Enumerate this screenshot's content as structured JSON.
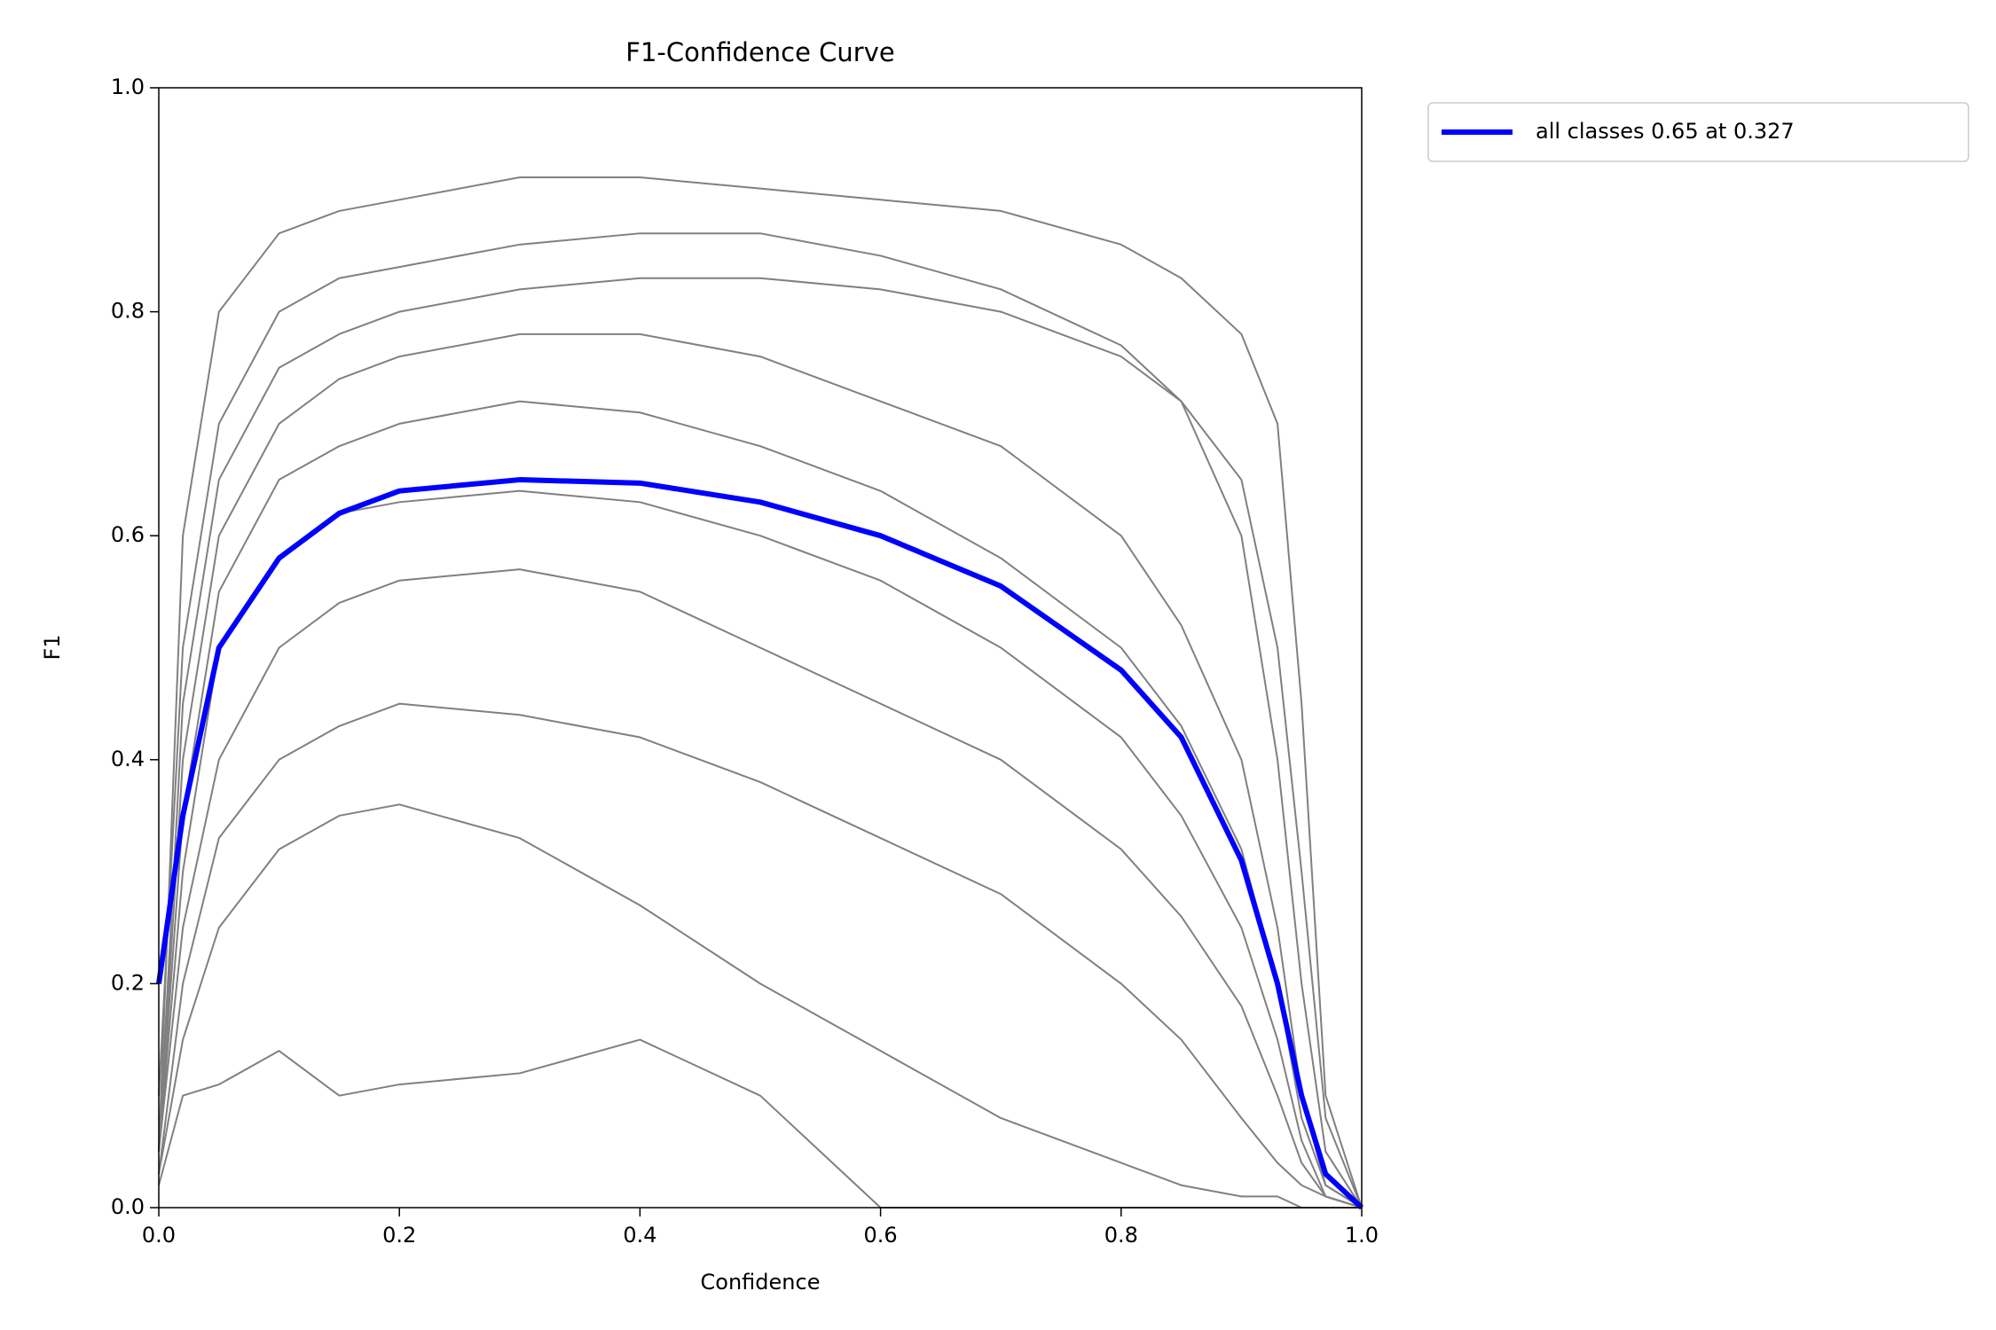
{
  "chart_data": {
    "type": "line",
    "title": "F1-Confidence Curve",
    "x_label": "Confidence",
    "y_label": "F1",
    "xlim": [
      0,
      1
    ],
    "ylim": [
      0,
      1
    ],
    "xticks": [
      {
        "value": 0,
        "label": "0.0"
      },
      0.2,
      0.4,
      0.6,
      0.8,
      {
        "value": 1,
        "label": "1.0"
      }
    ],
    "yticks": [
      {
        "value": 0,
        "label": "0.0"
      },
      0.2,
      0.4,
      0.6,
      0.8,
      {
        "value": 1,
        "label": "1.0"
      }
    ],
    "legend": "outside-upper-right",
    "x": [
      0,
      0.02,
      0.05,
      0.1,
      0.15,
      0.2,
      0.3,
      0.4,
      0.5,
      0.6,
      0.7,
      0.8,
      0.85,
      0.9,
      0.93,
      0.95,
      0.97,
      1.0
    ],
    "series": [
      {
        "color": "#808080",
        "values": [
          0.05,
          0.6,
          0.8,
          0.87,
          0.89,
          0.9,
          0.92,
          0.92,
          0.91,
          0.9,
          0.89,
          0.86,
          0.83,
          0.78,
          0.7,
          0.45,
          0.1,
          0
        ]
      },
      {
        "color": "#808080",
        "values": [
          0.1,
          0.5,
          0.7,
          0.8,
          0.83,
          0.84,
          0.86,
          0.87,
          0.87,
          0.85,
          0.82,
          0.77,
          0.72,
          0.6,
          0.4,
          0.2,
          0.05,
          0
        ]
      },
      {
        "color": "#808080",
        "values": [
          0.05,
          0.45,
          0.65,
          0.75,
          0.78,
          0.8,
          0.82,
          0.83,
          0.83,
          0.82,
          0.8,
          0.76,
          0.72,
          0.65,
          0.5,
          0.3,
          0.08,
          0
        ]
      },
      {
        "color": "#808080",
        "values": [
          0.05,
          0.4,
          0.6,
          0.7,
          0.74,
          0.76,
          0.78,
          0.78,
          0.76,
          0.72,
          0.68,
          0.6,
          0.52,
          0.4,
          0.25,
          0.1,
          0.02,
          0
        ]
      },
      {
        "color": "#808080",
        "values": [
          0.05,
          0.35,
          0.55,
          0.65,
          0.68,
          0.7,
          0.72,
          0.71,
          0.68,
          0.64,
          0.58,
          0.5,
          0.43,
          0.32,
          0.2,
          0.08,
          0.02,
          0
        ]
      },
      {
        "color": "#808080",
        "values": [
          0.05,
          0.3,
          0.5,
          0.58,
          0.62,
          0.63,
          0.64,
          0.63,
          0.6,
          0.56,
          0.5,
          0.42,
          0.35,
          0.25,
          0.15,
          0.06,
          0.01,
          0
        ]
      },
      {
        "color": "#808080",
        "values": [
          0.05,
          0.25,
          0.4,
          0.5,
          0.54,
          0.56,
          0.57,
          0.55,
          0.5,
          0.45,
          0.4,
          0.32,
          0.26,
          0.18,
          0.1,
          0.04,
          0.01,
          0
        ]
      },
      {
        "color": "#808080",
        "values": [
          0.03,
          0.2,
          0.33,
          0.4,
          0.43,
          0.45,
          0.44,
          0.42,
          0.38,
          0.33,
          0.28,
          0.2,
          0.15,
          0.08,
          0.04,
          0.02,
          0.01,
          0
        ]
      },
      {
        "color": "#808080",
        "values": [
          0.03,
          0.15,
          0.25,
          0.32,
          0.35,
          0.36,
          0.33,
          0.27,
          0.2,
          0.14,
          0.08,
          0.04,
          0.02,
          0.01,
          0.01,
          0,
          0,
          0
        ]
      },
      {
        "color": "#808080",
        "values": [
          0.02,
          0.1,
          0.11,
          0.14,
          0.1,
          0.11,
          0.12,
          0.15,
          0.1,
          0,
          0,
          0,
          0,
          0,
          0,
          0,
          0,
          0
        ]
      },
      {
        "name": "all classes 0.65 at 0.327",
        "color": "#0000ff",
        "width": 6,
        "values": [
          0.2,
          0.35,
          0.5,
          0.58,
          0.62,
          0.64,
          0.65,
          0.647,
          0.63,
          0.6,
          0.555,
          0.48,
          0.42,
          0.31,
          0.2,
          0.1,
          0.03,
          0
        ]
      }
    ]
  }
}
